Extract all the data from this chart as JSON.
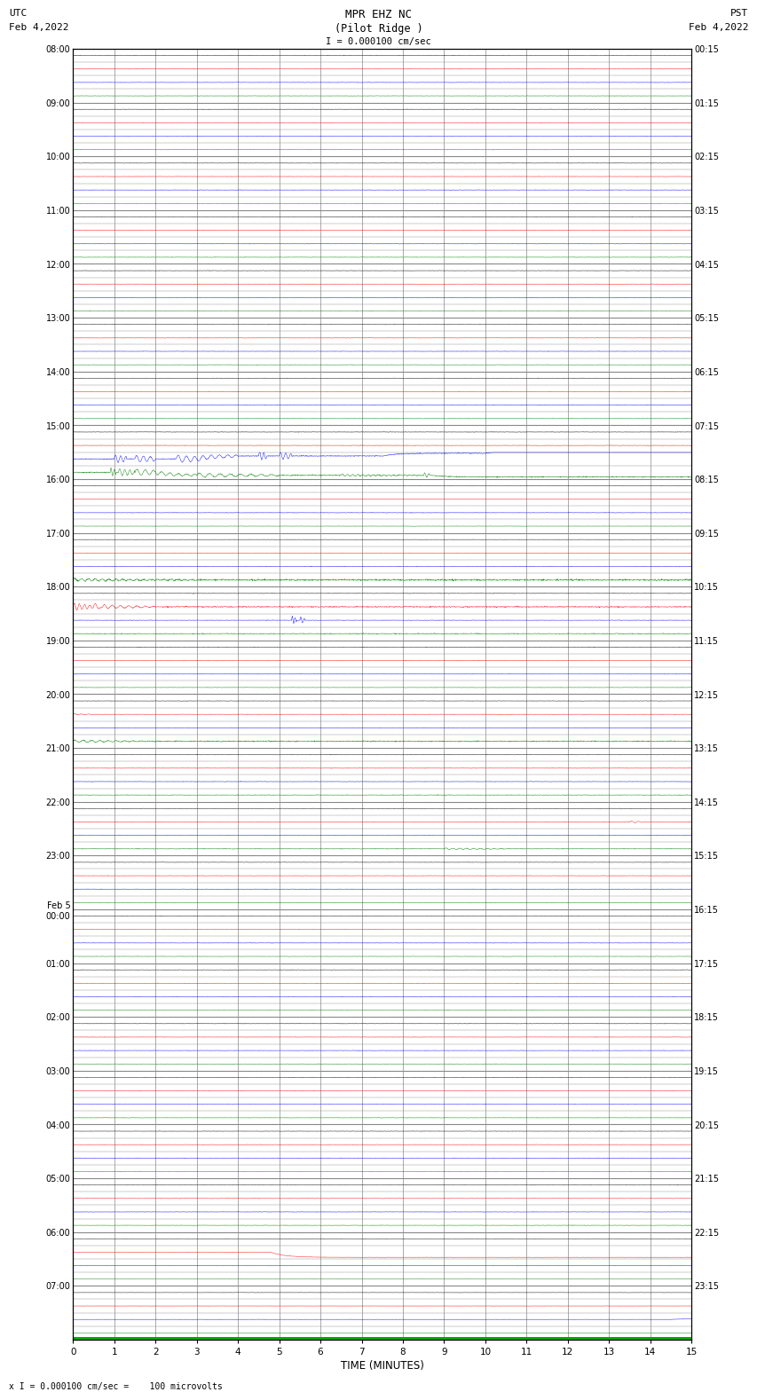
{
  "title_line1": "MPR EHZ NC",
  "title_line2": "(Pilot Ridge )",
  "scale_label": "I = 0.000100 cm/sec",
  "left_label1": "UTC",
  "left_label2": "Feb 4,2022",
  "right_label1": "PST",
  "right_label2": "Feb 4,2022",
  "bottom_label": "TIME (MINUTES)",
  "footer_label": "x I = 0.000100 cm/sec =    100 microvolts",
  "n_rows": 96,
  "n_minutes": 15,
  "background_color": "#ffffff",
  "grid_color": "#888888",
  "colors_cycle": [
    "#000000",
    "#ff0000",
    "#0000ff",
    "#008000"
  ],
  "fig_width": 8.5,
  "fig_height": 16.13
}
